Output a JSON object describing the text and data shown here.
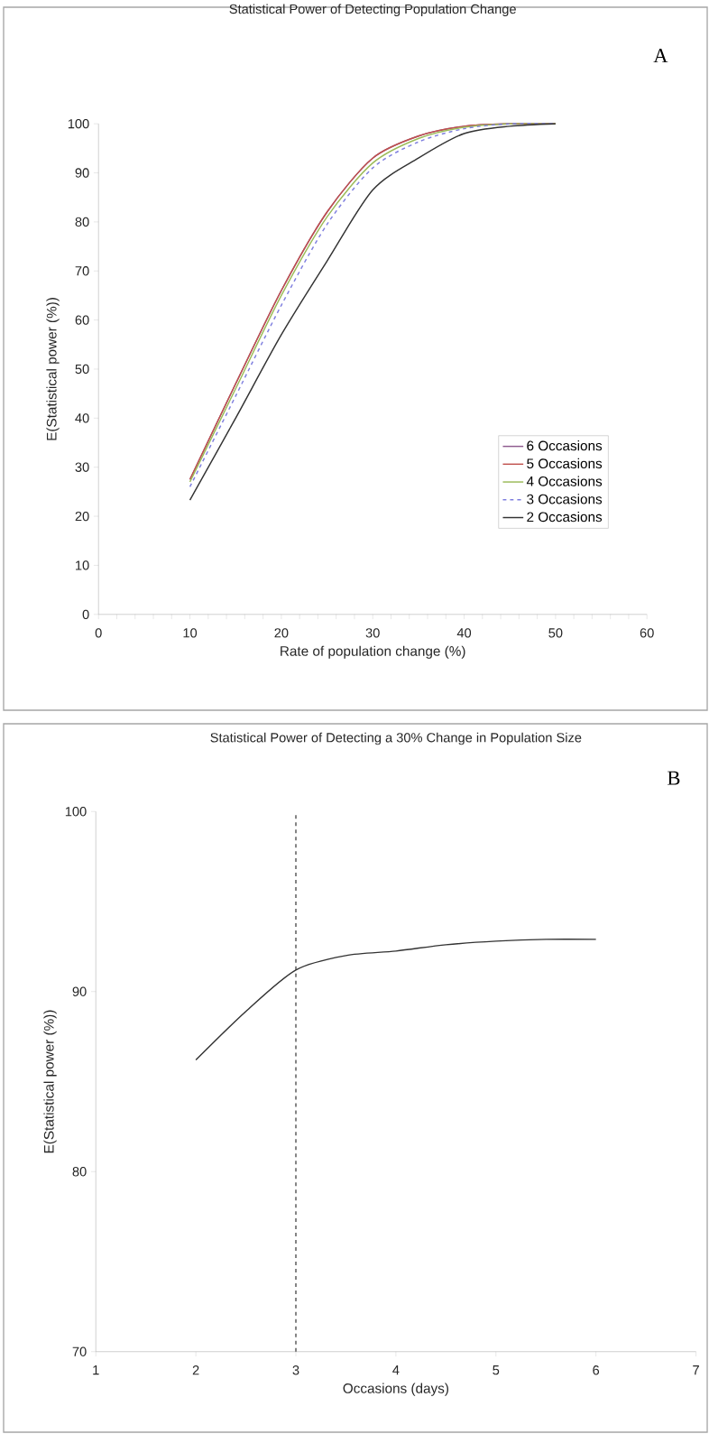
{
  "chart_data": [
    {
      "type": "line",
      "title": "Statistical Power of Detecting Population Change",
      "xlabel": "Rate of population change (%)",
      "ylabel": "E(Statistical power (%))",
      "annotations": [
        "A"
      ],
      "xlim": [
        0,
        60
      ],
      "ylim": [
        0,
        100
      ],
      "xticks": [
        0,
        {
          "value": 2,
          "label": null
        },
        {
          "value": 4,
          "label": null
        },
        {
          "value": 6,
          "label": null
        },
        {
          "value": 8,
          "label": null
        },
        10,
        {
          "value": 12,
          "label": null
        },
        {
          "value": 14,
          "label": null
        },
        {
          "value": 16,
          "label": null
        },
        {
          "value": 18,
          "label": null
        },
        20,
        {
          "value": 22,
          "label": null
        },
        {
          "value": 24,
          "label": null
        },
        {
          "value": 26,
          "label": null
        },
        {
          "value": 28,
          "label": null
        },
        30,
        {
          "value": 32,
          "label": null
        },
        {
          "value": 34,
          "label": null
        },
        {
          "value": 36,
          "label": null
        },
        {
          "value": 38,
          "label": null
        },
        40,
        {
          "value": 42,
          "label": null
        },
        {
          "value": 44,
          "label": null
        },
        {
          "value": 46,
          "label": null
        },
        {
          "value": 48,
          "label": null
        },
        50,
        {
          "value": 52,
          "label": null
        },
        {
          "value": 54,
          "label": null
        },
        {
          "value": 56,
          "label": null
        },
        {
          "value": 58,
          "label": null
        },
        60
      ],
      "yticks": [
        0,
        10,
        20,
        30,
        40,
        50,
        60,
        70,
        80,
        90,
        100
      ],
      "x": [
        10,
        15,
        20,
        25,
        30,
        35,
        40,
        45,
        50
      ],
      "legend": "bottom right",
      "grid": false,
      "series": [
        {
          "name": "6 Occasions",
          "color": "#8e5a8e",
          "values": [
            27.5,
            47,
            66,
            82,
            93,
            97.5,
            99.5,
            100,
            100
          ]
        },
        {
          "name": "5 Occasions",
          "color": "#c0504d",
          "values": [
            27.5,
            47,
            66,
            82,
            93,
            97.5,
            99.5,
            100,
            100
          ]
        },
        {
          "name": "4 Occasions",
          "color": "#9bbb59",
          "values": [
            27,
            46,
            65,
            81,
            92,
            97,
            99.3,
            100,
            100
          ]
        },
        {
          "name": "3 Occasions",
          "color": "#7f7fdf",
          "line_style": "dashed",
          "values": [
            26,
            44.5,
            63,
            79.5,
            91,
            96.3,
            99,
            100,
            100
          ]
        },
        {
          "name": "2 Occasions",
          "color": "#333333",
          "values": [
            23.3,
            40,
            57,
            72,
            86.5,
            93,
            98,
            99.5,
            100
          ]
        }
      ]
    },
    {
      "type": "line",
      "title": "Statistical Power of Detecting a 30% Change in Population Size",
      "xlabel": "Occasions (days)",
      "ylabel": "E(Statistical power (%))",
      "annotations": [
        "B"
      ],
      "xlim": [
        1,
        7
      ],
      "ylim": [
        70,
        100
      ],
      "xticks": [
        1,
        2,
        3,
        4,
        5,
        6,
        7
      ],
      "yticks": [
        70,
        80,
        90,
        100
      ],
      "grid": false,
      "x": [
        2,
        2.5,
        3,
        3.5,
        4,
        4.5,
        5,
        5.5,
        6
      ],
      "ref_lines": [
        {
          "axis": "x",
          "value": 3,
          "color": "#333333",
          "line_style": "dashed"
        }
      ],
      "series": [
        {
          "color": "#333333",
          "values": [
            86.2,
            88.9,
            91.2,
            92.0,
            92.25,
            92.6,
            92.8,
            92.9,
            92.9
          ]
        }
      ]
    }
  ]
}
